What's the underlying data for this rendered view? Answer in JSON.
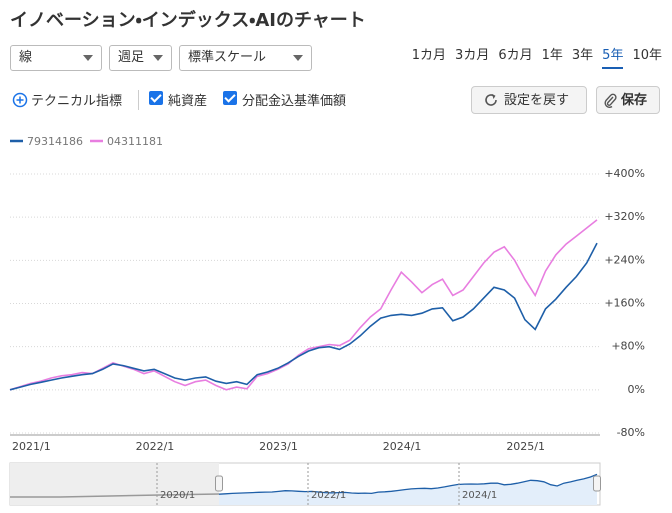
{
  "header": {
    "title": "イノベーション・インデックス・AIのチャート"
  },
  "controls": {
    "selects": [
      "線",
      "週足",
      "標準スケール"
    ],
    "periods": [
      "1カ月",
      "3カ月",
      "6カ月",
      "1年",
      "3年",
      "5年",
      "10年"
    ],
    "selected_period": 5,
    "technical": "テクニカル指標",
    "checkboxes": [
      {
        "label": "純資産",
        "checked": true
      },
      {
        "label": "分配金込基準価額",
        "checked": true
      }
    ],
    "reset": "設定を戻す",
    "save": "保存"
  },
  "chart_data": {
    "type": "line",
    "categories": [
      "2021/1",
      null,
      null,
      null,
      null,
      null,
      null,
      null,
      null,
      null,
      null,
      null,
      "2022/1",
      null,
      null,
      null,
      null,
      null,
      null,
      null,
      null,
      null,
      null,
      null,
      "2023/1",
      null,
      null,
      null,
      null,
      null,
      null,
      null,
      null,
      null,
      null,
      null,
      "2024/1",
      null,
      null,
      null,
      null,
      null,
      null,
      null,
      null,
      null,
      null,
      null,
      "2025/1",
      null,
      null,
      null,
      null,
      null,
      null,
      null,
      null,
      null
    ],
    "series": [
      {
        "name": "79314186",
        "color": "#1e5fa8",
        "values": [
          0,
          5,
          10,
          14,
          18,
          22,
          25,
          28,
          30,
          38,
          48,
          45,
          40,
          35,
          38,
          30,
          22,
          18,
          22,
          24,
          16,
          12,
          15,
          10,
          28,
          33,
          40,
          50,
          62,
          72,
          78,
          80,
          75,
          85,
          100,
          118,
          133,
          138,
          140,
          138,
          142,
          150,
          152,
          128,
          135,
          150,
          170,
          190,
          185,
          170,
          130,
          112,
          150,
          168,
          190,
          210,
          235,
          272
        ]
      },
      {
        "name": "04311181",
        "color": "#e87ee0",
        "values": [
          0,
          6,
          12,
          16,
          22,
          26,
          28,
          32,
          30,
          40,
          50,
          44,
          38,
          30,
          35,
          25,
          15,
          8,
          15,
          18,
          8,
          0,
          5,
          2,
          25,
          30,
          38,
          48,
          64,
          76,
          80,
          84,
          82,
          92,
          115,
          135,
          150,
          185,
          218,
          200,
          180,
          195,
          205,
          175,
          185,
          210,
          235,
          255,
          265,
          240,
          205,
          175,
          220,
          250,
          270,
          285,
          300,
          315
        ]
      }
    ],
    "ylim": [
      -80,
      400
    ],
    "yticks": [
      {
        "value": -80,
        "label": "-80%"
      },
      {
        "value": 0,
        "label": "0%"
      },
      {
        "value": 80,
        "label": "+80%"
      },
      {
        "value": 160,
        "label": "+160%"
      },
      {
        "value": 240,
        "label": "+240%"
      },
      {
        "value": 320,
        "label": "+320%"
      },
      {
        "value": 400,
        "label": "+400%"
      }
    ],
    "grid": true
  },
  "navigator": {
    "labels": [
      "2020/1",
      "2022/1",
      "2024/1"
    ]
  }
}
